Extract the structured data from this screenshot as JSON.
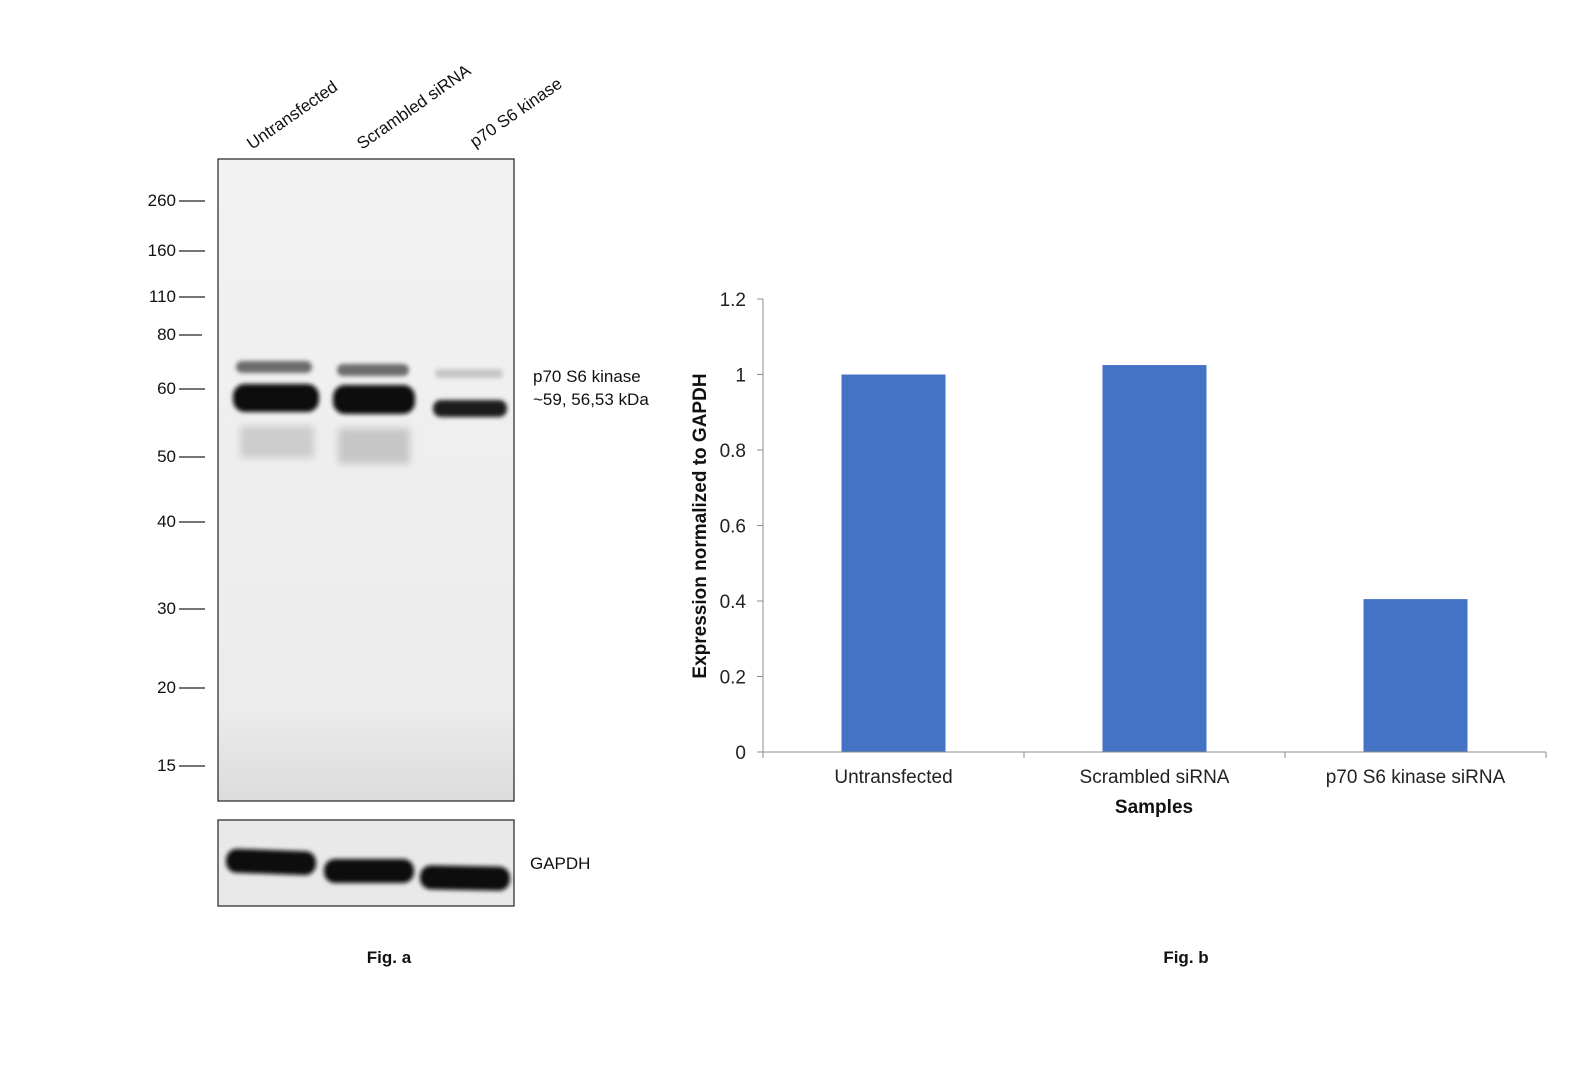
{
  "figure_a": {
    "lane_labels": [
      "Untransfected",
      "Scrambled siRNA",
      "p70 S6 kinase"
    ],
    "mw_markers": [
      "260",
      "160",
      "110",
      "80",
      "60",
      "50",
      "40",
      "30",
      "20",
      "15"
    ],
    "band_label_line1": "p70 S6 kinase",
    "band_label_line2": "~59, 56,53 kDa",
    "loading_control_label": "GAPDH",
    "caption": "Fig. a"
  },
  "figure_b": {
    "caption": "Fig. b"
  },
  "chart_data": {
    "type": "bar",
    "categories": [
      "Untransfected",
      "Scrambled siRNA",
      "p70 S6 kinase siRNA"
    ],
    "values": [
      1.0,
      1.025,
      0.405
    ],
    "xlabel": "Samples",
    "ylabel": "Expression normalized to GAPDH",
    "ylim": [
      0,
      1.2
    ],
    "yticks": [
      "0",
      "0.2",
      "0.4",
      "0.6",
      "0.8",
      "1",
      "1.2"
    ],
    "bar_color": "#4472C4",
    "grid": false,
    "legend": "none"
  }
}
